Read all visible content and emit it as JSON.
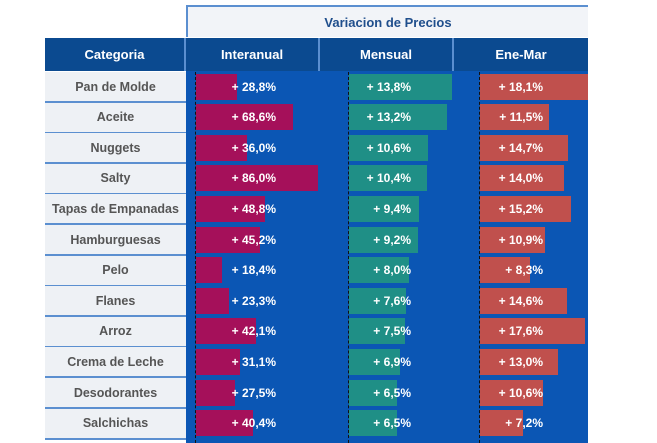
{
  "chart_data": {
    "type": "bar",
    "orientation": "horizontal",
    "title": "Variacion de Precios",
    "category_header": "Categoria",
    "categories": [
      "Pan de Molde",
      "Aceite",
      "Nuggets",
      "Salty",
      "Tapas de Empanadas",
      "Hamburguesas",
      "Pelo",
      "Flanes",
      "Arroz",
      "Crema de Leche",
      "Desodorantes",
      "Salchichas"
    ],
    "series": [
      {
        "name": "Interanual",
        "color": "#a5105a",
        "values": [
          28.8,
          68.6,
          36.0,
          86.0,
          48.8,
          45.2,
          18.4,
          23.3,
          42.1,
          31.1,
          27.5,
          40.4
        ],
        "labels": [
          "+ 28,8%",
          "+ 68,6%",
          "+ 36,0%",
          "+ 86,0%",
          "+ 48,8%",
          "+ 45,2%",
          "+ 18,4%",
          "+ 23,3%",
          "+ 42,1%",
          "+ 31,1%",
          "+ 27,5%",
          "+ 40,4%"
        ]
      },
      {
        "name": "Mensual",
        "color": "#1f8f86",
        "values": [
          13.8,
          13.2,
          10.6,
          10.4,
          9.4,
          9.2,
          8.0,
          7.6,
          7.5,
          6.9,
          6.5,
          6.5
        ],
        "labels": [
          "+ 13,8%",
          "+ 13,2%",
          "+ 10,6%",
          "+ 10,4%",
          "+ 9,4%",
          "+ 9,2%",
          "+ 8,0%",
          "+ 7,6%",
          "+ 7,5%",
          "+ 6,9%",
          "+ 6,5%",
          "+ 6,5%"
        ]
      },
      {
        "name": "Ene-Mar",
        "color": "#c0504d",
        "values": [
          18.1,
          11.5,
          14.7,
          14.0,
          15.2,
          10.9,
          8.3,
          14.6,
          17.6,
          13.0,
          10.6,
          7.2
        ],
        "labels": [
          "+ 18,1%",
          "+ 11,5%",
          "+ 14,7%",
          "+ 14,0%",
          "+ 15,2%",
          "+ 10,9%",
          "+ 8,3%",
          "+ 14,6%",
          "+ 17,6%",
          "+ 13,0%",
          "+ 10,6%",
          "+ 7,2%"
        ]
      }
    ],
    "background_color": "#0b56b4",
    "header_color": "#0b4a90"
  }
}
